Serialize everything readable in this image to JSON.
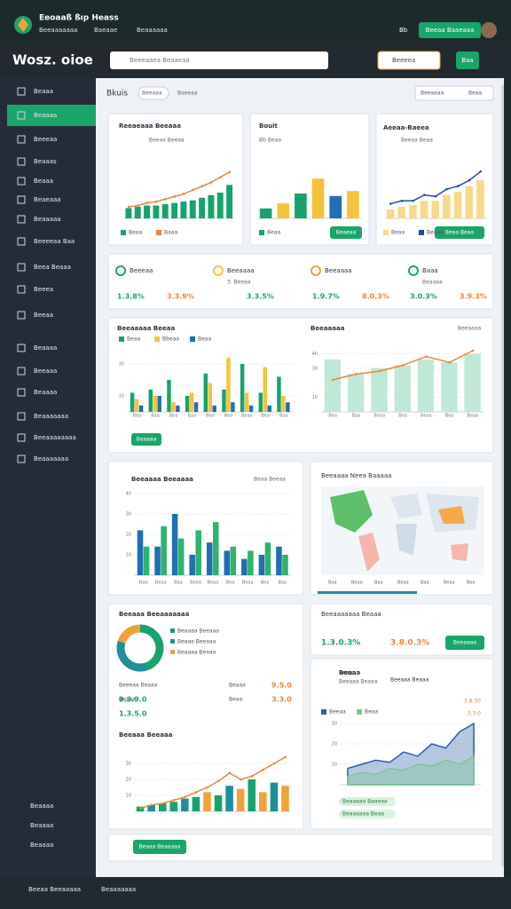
{
  "header": {
    "app": "Eeoaaß ßıp Heass",
    "tabs": [
      "Beeaaaaaaa",
      "Baeaae",
      "Beaaaaaa"
    ],
    "code": "Bb",
    "button": "Beeaa Baaeaaa"
  },
  "toolbar": {
    "brand": "Wosz. oioe",
    "search": "Beeeaaea Beaaeaa",
    "filter": "Beeeea",
    "button": "Baa"
  },
  "sidebar": {
    "items": [
      "Beaaa",
      "Beaaaa",
      "Beeeaa",
      "Beaaas",
      "Beaaa",
      "Beaeaaa",
      "Beaaaaa",
      "Beeeeaa Baa",
      "Beea Beaaa",
      "Beeea",
      "Beeaa",
      "Beaaaa",
      "Beeaaa",
      "Beaaaa",
      "Beaaaaaaa",
      "Beeaaaaaaaa",
      "Beaaaaaaa"
    ],
    "active": 1,
    "bottom": [
      "Beaaaa",
      "Beaaaa",
      "Beaaaa"
    ]
  },
  "breadcrumb": {
    "title": "Bkuis",
    "tabs": [
      "Beeaaa",
      "Baeeaa"
    ],
    "right": "Beeaaaa",
    "sort": "Beaa"
  },
  "stats": [
    {
      "label": "Beeeaa",
      "values": [
        "1.3.8%",
        "3.3.9%"
      ]
    },
    {
      "label": "Beeaaaa",
      "sub": "3. Beeaa",
      "values": [
        "3.3.5%"
      ]
    },
    {
      "label": "Beeaaaa",
      "values": [
        "1.9.7%",
        "8.0.3%"
      ]
    },
    {
      "label": "Baaa",
      "sub": "Beaaaa",
      "values": [
        "3.0.3%",
        "3.9.3%"
      ]
    }
  ],
  "map": {
    "title": "Beeaaaa Neea Baaaaa",
    "labels": [
      "Baa",
      "Beaa",
      "Baa",
      "Beaa",
      "Baa",
      "Beaa",
      "Bea"
    ]
  },
  "summary": {
    "title": "Beeaaaaaaa Beaaa",
    "values": [
      "1.3.0.3%",
      "3.8.0.3%"
    ],
    "button": "Beeaaaa"
  },
  "donut_stats": [
    {
      "label": "Beeeaa Beaaa",
      "value": "9.3.9.0"
    },
    {
      "label": "Beaaa",
      "value": "9.5.0"
    },
    {
      "label": "Beaaa",
      "value": "1.3.5.0"
    },
    {
      "label": "Beaa",
      "value": "3.3.0"
    }
  ],
  "area_info": {
    "items": [
      "Beaaa",
      "Beeaaa Beaaa"
    ],
    "values": [
      "3.8.30",
      "3.3.0"
    ],
    "tags": [
      "Beaaaaa Baaeaa",
      "Beaaaaaa Beaa"
    ]
  },
  "bottom_card": {
    "button": "Beaaa Beaaaaa"
  },
  "footer": {
    "left": "Beeaa Beeaaaaa",
    "right": "Beaaaaaaa"
  },
  "chart_data": [
    {
      "type": "combo",
      "title": "Reeaeaaa Beeaaa",
      "subtitle": "Beeaa Beeaa",
      "ylim": [
        0,
        40
      ],
      "series": [
        {
          "name": "Beaa",
          "kind": "bar",
          "color": "#17a36b",
          "values": [
            8,
            9,
            10,
            10,
            11,
            12,
            13,
            14,
            16,
            18,
            20,
            26
          ]
        },
        {
          "name": "Baaa",
          "kind": "line",
          "color": "#e9863a",
          "values": [
            9,
            10,
            12,
            13,
            15,
            17,
            19,
            22,
            25,
            28,
            32,
            36
          ]
        }
      ]
    },
    {
      "type": "bar",
      "title": "Bouit",
      "subtitle": "Bb Beaa",
      "ylim": [
        0,
        40
      ],
      "series": [
        {
          "name": "Beaa",
          "kind": "bar",
          "colors": [
            "#17a36b",
            "#f5c33b",
            "#17a36b",
            "#f5c33b",
            "#1f6fb5",
            "#f5c33b"
          ],
          "values": [
            8,
            12,
            20,
            32,
            18,
            22
          ]
        }
      ],
      "button": "Beaeaa"
    },
    {
      "type": "area",
      "title": "Aeeaa-Baeea",
      "subtitle": "Beeaa Beaa",
      "button": "Beaa Beaa",
      "ylim": [
        0,
        40
      ],
      "series": [
        {
          "name": "Beaa",
          "kind": "bar",
          "color": "#f7d98a",
          "values": [
            6,
            8,
            9,
            12,
            12,
            16,
            18,
            22,
            26
          ]
        },
        {
          "name": "Beaaa",
          "kind": "line",
          "color": "#1f4fa0",
          "values": [
            10,
            12,
            12,
            16,
            15,
            20,
            22,
            26,
            32
          ]
        }
      ]
    },
    {
      "type": "bar",
      "title": "Beeaaaaa Beeaa",
      "button": "Beaaaa",
      "ylim": [
        0,
        40
      ],
      "yticks": [
        10,
        30
      ],
      "categories": [
        "Bea",
        "Baa",
        "Bea",
        "Baa",
        "Bea",
        "Bea",
        "Beaa",
        "Bea",
        "Baa"
      ],
      "series": [
        {
          "name": "Beaa",
          "kind": "bar",
          "color": "#17a36b",
          "values": [
            12,
            14,
            20,
            10,
            24,
            14,
            30,
            12,
            22
          ]
        },
        {
          "name": "Bbeaa",
          "kind": "bar",
          "color": "#f5c33b",
          "values": [
            8,
            10,
            6,
            12,
            18,
            34,
            12,
            28,
            10
          ]
        },
        {
          "name": "Beaa",
          "kind": "bar",
          "color": "#1f6fb5",
          "values": [
            4,
            10,
            4,
            6,
            4,
            6,
            4,
            4,
            6
          ]
        }
      ]
    },
    {
      "type": "combo",
      "title": "Beeaaaaa",
      "subtitle": "Beeaaaa",
      "ylim": [
        0,
        50
      ],
      "yticks": [
        10,
        30,
        40
      ],
      "categories": [
        "Bea",
        "Baa",
        "Beaa",
        "Bea",
        "Beaa",
        "Bea",
        "Beaa"
      ],
      "series": [
        {
          "name": "Beaa",
          "kind": "bar",
          "color": "#bfe8d6",
          "values": [
            36,
            26,
            30,
            32,
            36,
            34,
            40
          ]
        },
        {
          "name": "Beaaa",
          "kind": "line",
          "color": "#e9863a",
          "values": [
            22,
            26,
            28,
            32,
            38,
            34,
            42
          ]
        }
      ]
    },
    {
      "type": "bar",
      "title": "Beeaaaa Beeaaaa",
      "subtitle": "Beaa Beeaa",
      "ylim": [
        0,
        40
      ],
      "yticks": [
        10,
        20,
        30,
        40
      ],
      "categories": [
        "Baa",
        "Beaa",
        "Baa",
        "Beea",
        "Beaa",
        "Bea",
        "Beaa",
        "Bea",
        "Baa"
      ],
      "series": [
        {
          "name": "Beaa",
          "kind": "bar",
          "color": "#1f6fb5",
          "values": [
            22,
            14,
            30,
            10,
            16,
            12,
            8,
            10,
            14
          ]
        },
        {
          "name": "Bbaa",
          "kind": "bar",
          "color": "#2db36b",
          "values": [
            14,
            24,
            18,
            22,
            26,
            14,
            12,
            16,
            10
          ]
        }
      ]
    },
    {
      "type": "pie",
      "title": "Beeaaa Beeaaaaaaa",
      "categories": [
        "Beaaaa Beeaaa",
        "Beaaa Beeaaa",
        "Beaaaa Beeaa"
      ],
      "values": [
        45,
        35,
        20
      ],
      "colors": [
        "#17a36b",
        "#1f8f9a",
        "#f0a13a"
      ]
    },
    {
      "type": "combo",
      "title": "Beeaaa Beeaaa",
      "ylim": [
        0,
        40
      ],
      "yticks": [
        10,
        20,
        30
      ],
      "series": [
        {
          "name": "Beaa",
          "kind": "bar",
          "colors": [
            "#17a36b",
            "#1f8f9a",
            "#17a36b",
            "#17a36b",
            "#1f8f9a",
            "#17a36b",
            "#f0a13a",
            "#17a36b",
            "#1f8f9a",
            "#f0a13a",
            "#17a36b",
            "#f0a13a",
            "#1f8f9a",
            "#f0a13a"
          ],
          "values": [
            3,
            4,
            5,
            6,
            8,
            9,
            12,
            10,
            16,
            14,
            20,
            12,
            18,
            16
          ]
        },
        {
          "name": "Baaa",
          "kind": "line",
          "color": "#e9863a",
          "values": [
            2,
            4,
            5,
            7,
            9,
            12,
            15,
            19,
            24,
            20,
            22,
            26,
            30,
            34
          ]
        }
      ]
    },
    {
      "type": "area",
      "title": "Beaaa",
      "subtitle": "Beeaaa Beaaa",
      "ylim": [
        0,
        40
      ],
      "yticks": [
        10,
        20,
        30
      ],
      "series": [
        {
          "name": "Beeaa",
          "kind": "area",
          "color": "#2b5fa8",
          "values": [
            8,
            10,
            12,
            11,
            16,
            14,
            20,
            18,
            26,
            30
          ]
        },
        {
          "name": "Beaa",
          "kind": "area",
          "color": "#7cc98f",
          "values": [
            4,
            6,
            5,
            8,
            7,
            10,
            9,
            12,
            10,
            14
          ]
        }
      ]
    }
  ]
}
